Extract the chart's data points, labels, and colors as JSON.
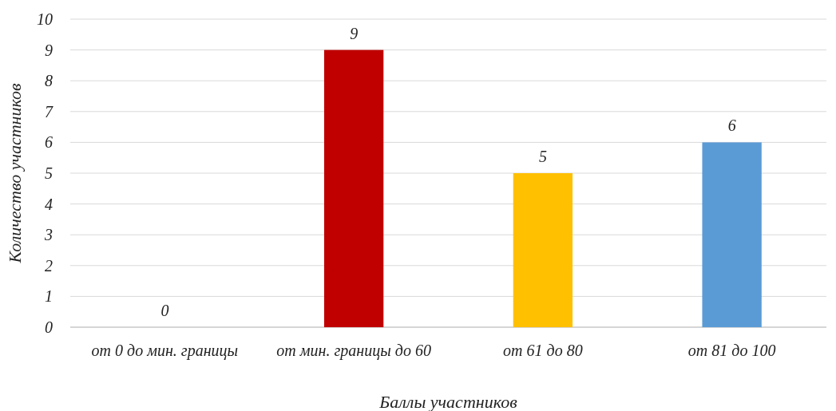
{
  "chart_data": {
    "type": "bar",
    "xlabel": "Баллы участников",
    "ylabel": "Количество участников",
    "categories": [
      "от 0 до мин. границы",
      "от мин. границы до 60",
      "от 61 до 80",
      "от 81 до 100"
    ],
    "values": [
      0,
      9,
      5,
      6
    ],
    "colors": [
      "#4472c4",
      "#c00000",
      "#ffc000",
      "#5b9bd5"
    ],
    "ylim": [
      0,
      10
    ],
    "yticks": [
      0,
      1,
      2,
      3,
      4,
      5,
      6,
      7,
      8,
      9,
      10
    ],
    "grid": "y",
    "data_labels": true
  }
}
